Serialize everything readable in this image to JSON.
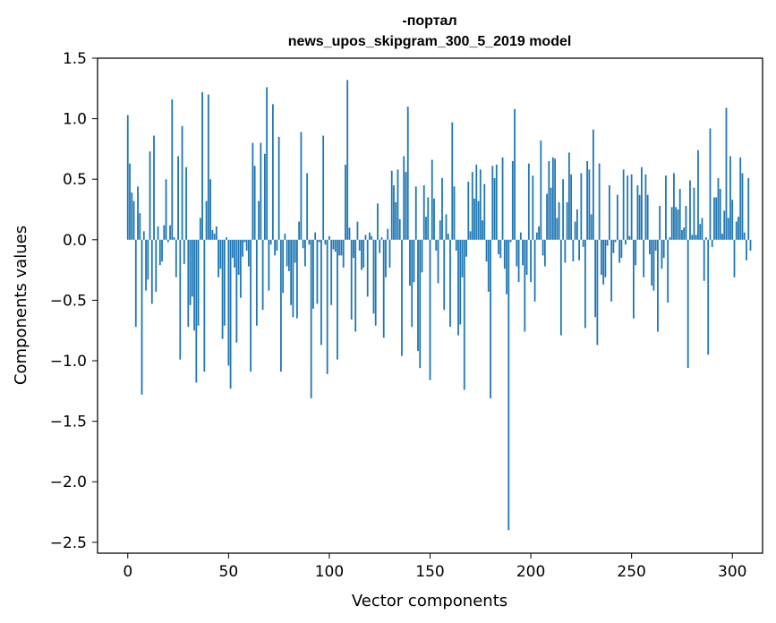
{
  "chart_data": {
    "type": "bar",
    "title_line1": "-портал",
    "title_line2": "news_upos_skipgram_300_5_2019 model",
    "xlabel": "Vector components",
    "ylabel": "Components values",
    "xlim": [
      -15,
      315
    ],
    "ylim": [
      -2.59,
      1.5
    ],
    "x_ticks": [
      0,
      50,
      100,
      150,
      200,
      250,
      300
    ],
    "x_tick_labels": [
      "0",
      "50",
      "100",
      "150",
      "200",
      "250",
      "300"
    ],
    "y_ticks": [
      1.5,
      1.0,
      0.5,
      0.0,
      -0.5,
      -1.0,
      -1.5,
      -2.0,
      -2.5
    ],
    "y_tick_labels": [
      "1.5",
      "1.0",
      "0.5",
      "0.0",
      "−0.5",
      "−1.0",
      "−1.5",
      "−2.0",
      "−2.5"
    ],
    "bar_color": "#1f77b4",
    "grid": false,
    "values": [
      1.03,
      0.63,
      0.39,
      0.32,
      -0.72,
      0.44,
      0.22,
      -1.28,
      0.07,
      -0.42,
      -0.33,
      0.73,
      -0.53,
      0.86,
      -0.43,
      0.11,
      -0.21,
      -0.18,
      0.12,
      0.5,
      -0.02,
      0.12,
      1.16,
      0.02,
      -0.31,
      0.69,
      -0.99,
      0.94,
      -0.2,
      0.6,
      -0.72,
      -0.54,
      -0.47,
      -0.75,
      -1.18,
      -0.71,
      0.18,
      1.22,
      -1.09,
      0.32,
      1.2,
      0.5,
      0.08,
      0.05,
      0.11,
      -0.31,
      -0.24,
      -0.82,
      -0.71,
      0.02,
      -1.04,
      -1.23,
      -0.15,
      -0.23,
      -0.85,
      -0.29,
      -0.48,
      -0.14,
      -0.02,
      -0.09,
      -0.22,
      -1.09,
      0.8,
      0.61,
      -0.71,
      0.32,
      0.8,
      -0.58,
      0.71,
      1.26,
      -0.42,
      -0.04,
      1.12,
      -0.13,
      -0.09,
      0.85,
      -1.09,
      -0.44,
      0.05,
      -0.22,
      -0.26,
      -0.54,
      -0.64,
      -0.19,
      -0.65,
      0.15,
      0.89,
      -0.07,
      -0.22,
      0.55,
      -0.04,
      -1.31,
      -0.57,
      0.06,
      -0.53,
      -0.02,
      -0.87,
      0.86,
      -0.04,
      -1.11,
      0.03,
      -0.54,
      -0.08,
      -0.1,
      -0.99,
      -0.13,
      -0.13,
      -0.23,
      0.62,
      1.32,
      0.1,
      -0.66,
      -0.15,
      -0.76,
      0.15,
      -0.09,
      -0.25,
      -0.23,
      0.04,
      -0.47,
      0.06,
      0.03,
      -0.61,
      -0.71,
      0.3,
      -0.11,
      0.02,
      -0.81,
      -0.31,
      0.09,
      -0.23,
      0.57,
      0.45,
      0.31,
      0.58,
      0.17,
      -0.96,
      0.69,
      0.56,
      1.1,
      -0.38,
      -0.72,
      -0.35,
      0.44,
      -0.92,
      -1.06,
      -0.27,
      0.45,
      0.19,
      0.35,
      -1.16,
      0.66,
      0.34,
      -0.09,
      -0.36,
      0.16,
      0.51,
      -0.58,
      0.21,
      0.05,
      -0.72,
      0.97,
      0.44,
      -0.09,
      -0.79,
      -0.7,
      -0.31,
      -1.24,
      -0.14,
      0.48,
      0.07,
      0.56,
      0.34,
      0.62,
      0.32,
      0.58,
      0.16,
      0.46,
      -0.18,
      -0.43,
      -1.31,
      0.61,
      0.51,
      0.62,
      -0.12,
      -0.15,
      0.68,
      -0.24,
      -0.45,
      -2.4,
      -0.02,
      0.65,
      1.08,
      -0.22,
      -0.35,
      0.06,
      -0.21,
      -0.76,
      -0.29,
      0.63,
      -0.35,
      0.53,
      -0.51,
      0.06,
      0.11,
      0.82,
      -0.13,
      -0.22,
      0.38,
      0.65,
      0.43,
      0.68,
      0.67,
      0.18,
      0.31,
      -0.79,
      0.5,
      -0.19,
      0.31,
      0.72,
      0.54,
      -0.18,
      0.15,
      0.25,
      -0.17,
      0.55,
      -0.06,
      -0.73,
      0.65,
      0.58,
      0.21,
      0.91,
      -0.64,
      -0.87,
      0.63,
      -0.29,
      -0.37,
      -0.31,
      -0.05,
      0.45,
      -0.51,
      -0.11,
      -0.02,
      0.37,
      -0.19,
      -0.15,
      0.58,
      -0.04,
      0.53,
      0.03,
      0.54,
      -0.65,
      -0.21,
      0.45,
      0.37,
      0.6,
      -0.31,
      0.54,
      0.37,
      -0.12,
      -0.38,
      -0.42,
      -0.09,
      -0.76,
      0.28,
      -0.24,
      -0.15,
      0.53,
      -0.52,
      0.02,
      0.27,
      0.55,
      0.27,
      0.25,
      0.42,
      0.08,
      0.1,
      0.28,
      -1.06,
      0.49,
      0.04,
      0.43,
      0.04,
      0.74,
      0.13,
      0.18,
      -0.34,
      0.02,
      -0.95,
      0.92,
      -0.06,
      0.35,
      0.35,
      0.51,
      0.42,
      0.05,
      0.24,
      1.09,
      0.18,
      0.69,
      0.33,
      -0.31,
      0.15,
      0.19,
      0.68,
      0.55,
      0.06,
      -0.17,
      0.51,
      -0.09
    ]
  }
}
